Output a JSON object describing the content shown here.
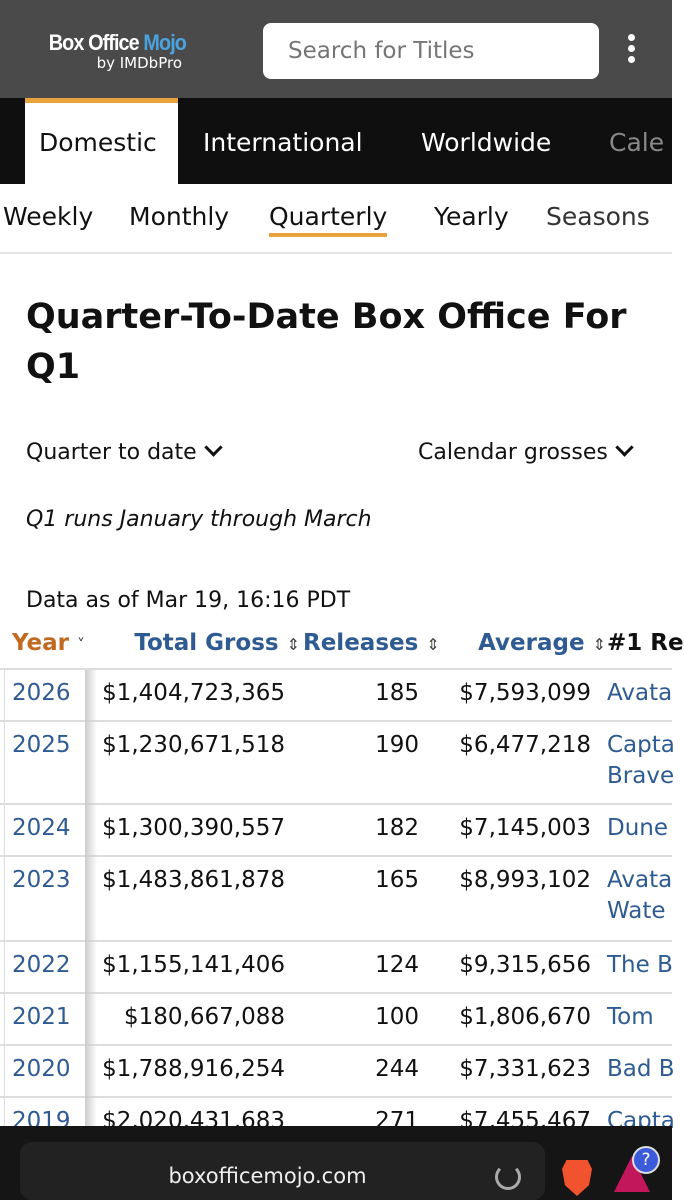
{
  "header": {
    "logo_main": "Box Office",
    "logo_accent": "Mojo",
    "logo_sub": "by IMDbPro",
    "search_placeholder": "Search for Titles"
  },
  "nav": {
    "tabs": [
      "Domestic",
      "International",
      "Worldwide",
      "Cale"
    ]
  },
  "subnav": {
    "tabs": [
      "Weekly",
      "Monthly",
      "Quarterly",
      "Yearly",
      "Seasons"
    ]
  },
  "page": {
    "title": "Quarter-To-Date Box Office For Q1",
    "dropdown_left": "Quarter to date",
    "dropdown_right": "Calendar grosses",
    "note": "Q1 runs January through March",
    "as_of": "Data as of Mar 19, 16:16 PDT"
  },
  "table": {
    "headers": {
      "year": "Year",
      "gross": "Total Gross",
      "releases": "Releases",
      "average": "Average",
      "top": "#1 Re"
    },
    "rows": [
      {
        "year": "2026",
        "gross": "$1,404,723,365",
        "releases": "185",
        "average": "$7,593,099",
        "top": "Avata"
      },
      {
        "year": "2025",
        "gross": "$1,230,671,518",
        "releases": "190",
        "average": "$6,477,218",
        "top": "Capta",
        "top2": "Brave"
      },
      {
        "year": "2024",
        "gross": "$1,300,390,557",
        "releases": "182",
        "average": "$7,145,003",
        "top": "Dune"
      },
      {
        "year": "2023",
        "gross": "$1,483,861,878",
        "releases": "165",
        "average": "$8,993,102",
        "top": "Avata",
        "top2": "Wate"
      },
      {
        "year": "2022",
        "gross": "$1,155,141,406",
        "releases": "124",
        "average": "$9,315,656",
        "top": "The B"
      },
      {
        "year": "2021",
        "gross": "$180,667,088",
        "releases": "100",
        "average": "$1,806,670",
        "top": "Tom"
      },
      {
        "year": "2020",
        "gross": "$1,788,916,254",
        "releases": "244",
        "average": "$7,331,623",
        "top": "Bad B"
      },
      {
        "year": "2019",
        "gross": "$2,020,431,683",
        "releases": "271",
        "average": "$7,455,467",
        "top": "Capta"
      }
    ]
  },
  "browser": {
    "url": "boxofficemojo.com"
  },
  "colors": {
    "accent": "#e8a33d",
    "link": "#2f5b93",
    "sorted": "#c06a22"
  }
}
